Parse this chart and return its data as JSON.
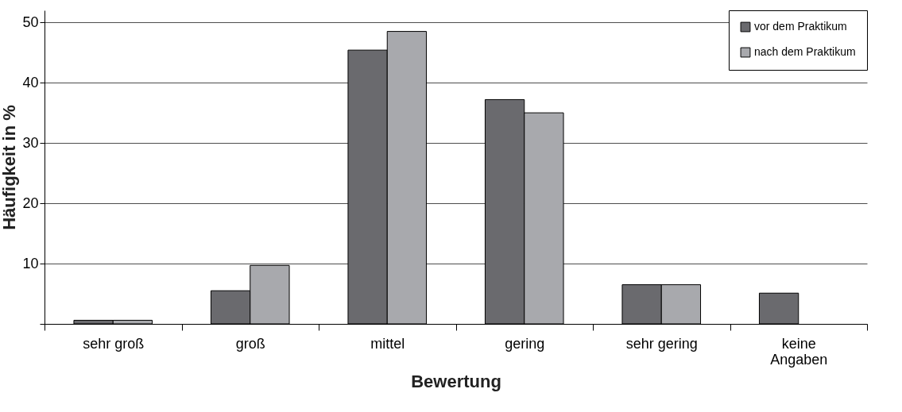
{
  "chart_data": {
    "type": "bar",
    "xlabel": "Bewertung",
    "ylabel": "Häufigkeit in %",
    "categories": [
      "sehr groß",
      "groß",
      "mittel",
      "gering",
      "sehr gering",
      "keine Angaben"
    ],
    "series": [
      {
        "name": "vor dem Praktikum",
        "color": "#6a6a6e",
        "values": [
          0.6,
          5.5,
          45.4,
          37.2,
          6.5,
          5.1
        ]
      },
      {
        "name": "nach dem Praktikum",
        "color": "#a8a9ad",
        "values": [
          0.6,
          9.7,
          48.5,
          35.0,
          6.5,
          null
        ]
      }
    ],
    "ylim": [
      0,
      52
    ],
    "yticks": [
      {
        "value": 0,
        "label": null
      },
      10,
      20,
      30,
      40,
      50
    ],
    "grid": "y",
    "legend": "top right"
  }
}
